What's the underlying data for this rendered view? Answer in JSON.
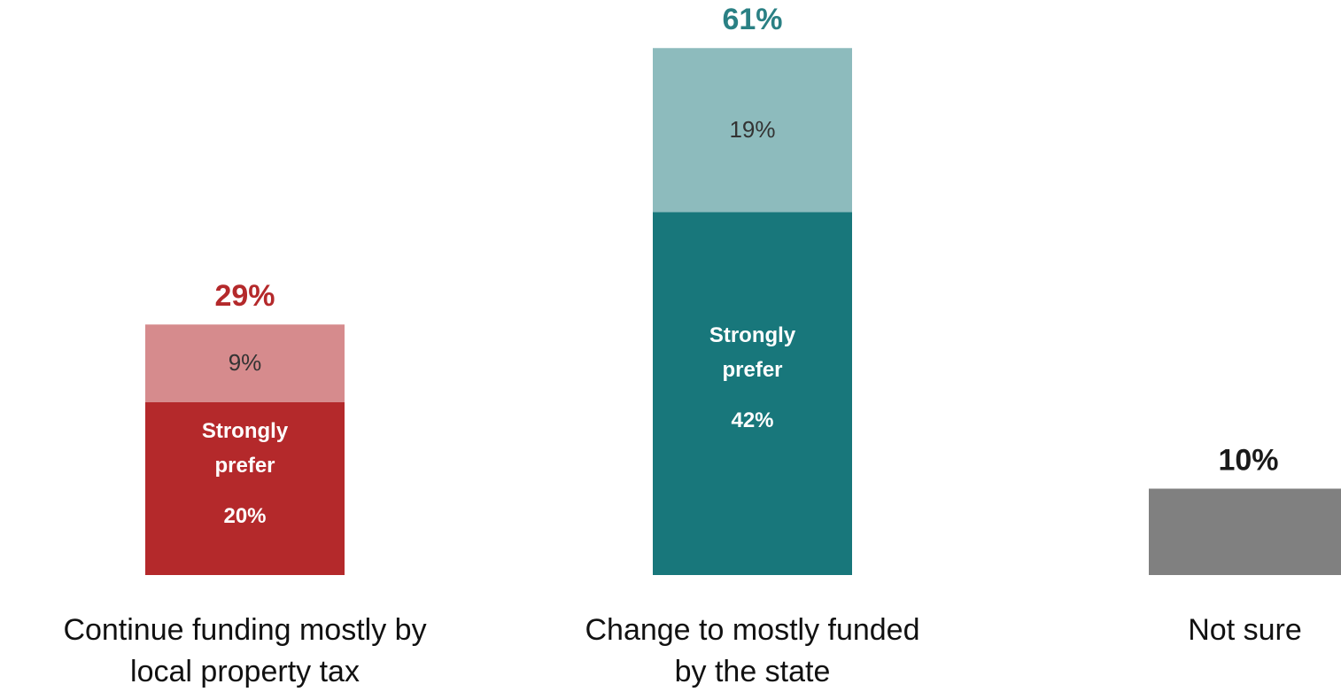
{
  "chart_data": {
    "type": "stacked_bar",
    "categories": [
      [
        "Continue funding mostly by",
        "local property tax"
      ],
      [
        "Change to mostly funded",
        "by the state"
      ],
      [
        "Not sure"
      ]
    ],
    "series": [
      {
        "name": "Strongly prefer",
        "colors": [
          "#b4292b",
          "#18777b",
          null
        ],
        "values": [
          20,
          42,
          null
        ],
        "value_labels": [
          "20%",
          "42%",
          null
        ]
      },
      {
        "colors": [
          "#d68b8d",
          "#8dbbbd",
          null
        ],
        "values": [
          9,
          19,
          null
        ],
        "value_labels": [
          "9%",
          "19%",
          null
        ]
      },
      {
        "colors": [
          null,
          null,
          "#808080"
        ],
        "values": [
          null,
          null,
          10
        ]
      }
    ],
    "totals": [
      29,
      61,
      10
    ],
    "total_labels": [
      "29%",
      "61%",
      "10%"
    ],
    "total_colors": [
      "#b4292b",
      "#2a8084",
      "#1a1a1a"
    ]
  }
}
